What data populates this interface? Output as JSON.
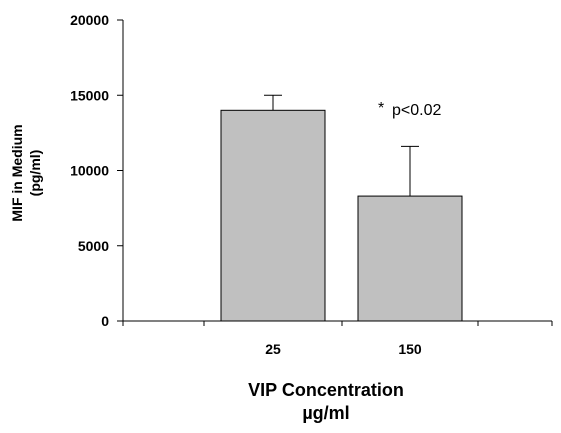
{
  "chart_data": {
    "type": "bar",
    "categories": [
      "25",
      "150"
    ],
    "values": [
      14000,
      8300
    ],
    "error_upper": [
      15000,
      11600
    ],
    "bar_color": "#c0c0c0",
    "ylabel_line1": "MIF in Medium",
    "ylabel_line2": "(pg/ml)",
    "xlabel_line1": "VIP Concentration",
    "xlabel_line2": "µg/ml",
    "ylim": [
      0,
      20000
    ],
    "yticks": [
      "0",
      "5000",
      "10000",
      "15000",
      "20000"
    ],
    "annotation": {
      "star": "*",
      "text": "p<0.02",
      "category": "150"
    },
    "grid": false
  }
}
